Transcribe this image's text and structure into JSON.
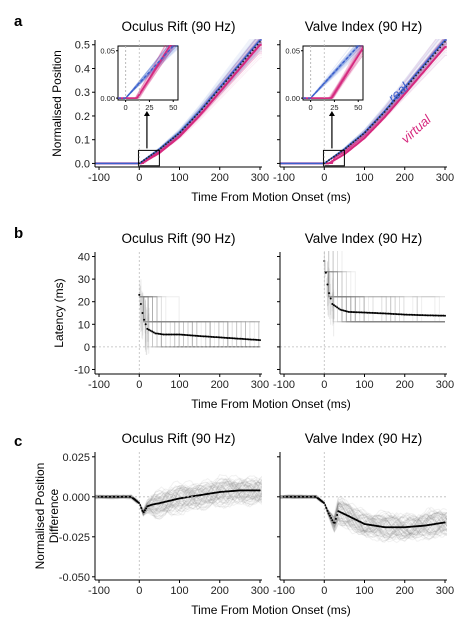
{
  "chart_data": [
    {
      "panel": "a",
      "type": "line",
      "titles": [
        "Oculus Rift (90 Hz)",
        "Valve Index (90 Hz)"
      ],
      "ylabel": "Normalised Position",
      "xlabel": "Time From Motion Onset (ms)",
      "xlim": [
        -110,
        305
      ],
      "ylim": [
        -0.015,
        0.52
      ],
      "xticks": [
        -100,
        0,
        100,
        200,
        300
      ],
      "yticks": [
        0.0,
        0.1,
        0.2,
        0.3,
        0.4,
        0.5
      ],
      "ytick_labels": [
        "0.0",
        "0.1",
        "0.2",
        "0.3",
        "0.4",
        "0.5"
      ],
      "inset": {
        "xlim": [
          -8,
          55
        ],
        "ylim": [
          -0.002,
          0.055
        ],
        "xticks": [
          0,
          25,
          50
        ],
        "yticks": [
          0.0,
          0.05
        ],
        "ytick_labels": [
          "0.00",
          "0.05"
        ]
      },
      "legend_labels": [
        "real",
        "virtual"
      ],
      "colors": {
        "real": "#3a5fcd",
        "virtual": "#d6287e"
      },
      "series": [
        {
          "name": "real",
          "x": [
            0,
            50,
            100,
            150,
            200,
            250,
            300
          ],
          "y": [
            0.0,
            0.06,
            0.13,
            0.22,
            0.32,
            0.42,
            0.52
          ]
        },
        {
          "name": "virtual",
          "x": [
            0,
            50,
            100,
            150,
            200,
            250,
            300
          ],
          "y": [
            0.0,
            0.05,
            0.12,
            0.21,
            0.31,
            0.41,
            0.51
          ]
        }
      ]
    },
    {
      "panel": "b",
      "type": "scatter",
      "titles": [
        "Oculus Rift (90 Hz)",
        "Valve Index (90 Hz)"
      ],
      "ylabel": "Latency (ms)",
      "xlabel": "Time From Motion Onset (ms)",
      "xlim": [
        -110,
        305
      ],
      "ylim": [
        -12,
        42
      ],
      "xticks": [
        -100,
        0,
        100,
        200,
        300
      ],
      "yticks": [
        -10,
        0,
        10,
        20,
        30,
        40
      ],
      "ytick_labels": [
        "-10",
        "0",
        "10",
        "20",
        "30",
        "40"
      ],
      "series": [
        {
          "name": "Oculus Rift",
          "x": [
            0,
            10,
            20,
            40,
            60,
            100,
            150,
            200,
            250,
            300
          ],
          "y": [
            23,
            13,
            8,
            6,
            5.5,
            5.5,
            4.8,
            4.2,
            3.6,
            3.0
          ]
        },
        {
          "name": "Valve Index",
          "x": [
            0,
            10,
            20,
            40,
            60,
            100,
            150,
            200,
            250,
            300
          ],
          "y": [
            38,
            25,
            19,
            16.5,
            15.5,
            15.2,
            14.8,
            14.3,
            14.0,
            13.8
          ]
        }
      ]
    },
    {
      "panel": "c",
      "type": "line",
      "titles": [
        "Oculus Rift (90 Hz)",
        "Valve Index (90 Hz)"
      ],
      "ylabel": "Normalised Position Difference",
      "xlabel": "Time From Motion Onset (ms)",
      "xlim": [
        -110,
        305
      ],
      "ylim": [
        -0.052,
        0.028
      ],
      "xticks": [
        -100,
        0,
        100,
        200,
        300
      ],
      "yticks": [
        -0.05,
        -0.025,
        0.0,
        0.025
      ],
      "ytick_labels": [
        "-0.050",
        "-0.025",
        "0.000",
        "0.025"
      ],
      "series": [
        {
          "name": "Oculus Rift",
          "x": [
            -100,
            -20,
            0,
            10,
            20,
            30,
            50,
            100,
            150,
            200,
            250,
            300
          ],
          "y": [
            0.0,
            0.0,
            -0.004,
            -0.01,
            -0.006,
            -0.005,
            -0.004,
            -0.001,
            0.001,
            0.003,
            0.004,
            0.004
          ]
        },
        {
          "name": "Valve Index",
          "x": [
            -100,
            -20,
            0,
            10,
            25,
            35,
            60,
            100,
            150,
            200,
            250,
            300
          ],
          "y": [
            0.0,
            0.0,
            -0.004,
            -0.01,
            -0.017,
            -0.009,
            -0.012,
            -0.017,
            -0.019,
            -0.019,
            -0.018,
            -0.016
          ]
        }
      ]
    }
  ]
}
